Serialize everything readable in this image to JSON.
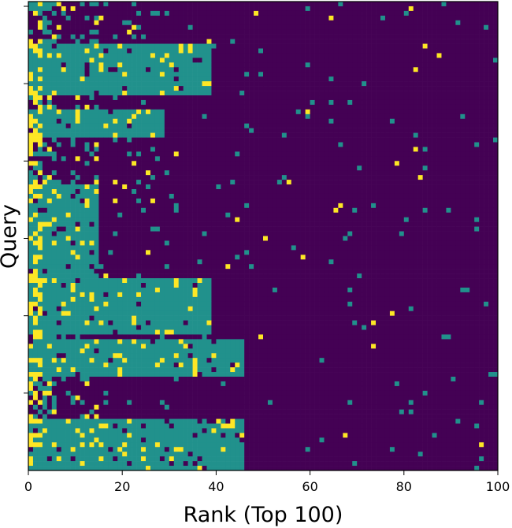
{
  "chart_data": {
    "type": "heatmap",
    "title": "",
    "xlabel": "Rank (Top 100)",
    "ylabel": "Query",
    "x_range": [
      0,
      100
    ],
    "x_ticks": [
      0,
      20,
      40,
      60,
      80,
      100
    ],
    "x_tick_labels": [
      "0",
      "20",
      "40",
      "60",
      "80",
      "100"
    ],
    "y_tick_labels": [
      "",
      "",
      "",
      "",
      "",
      ""
    ],
    "n_rows": 100,
    "n_cols": 100,
    "colorscale": {
      "0": "#440154",
      "1": "#21918c",
      "2": "#fde725"
    },
    "bands": [
      {
        "rows": [
          0,
          1
        ],
        "teal_until": 3
      },
      {
        "rows": [
          9,
          19
        ],
        "teal_until": 38
      },
      {
        "rows": [
          23,
          28
        ],
        "teal_until": 28
      },
      {
        "rows": [
          39,
          58
        ],
        "teal_until": 14
      },
      {
        "rows": [
          59,
          70
        ],
        "teal_until": 38
      },
      {
        "rows": [
          72,
          79
        ],
        "teal_until": 45
      },
      {
        "rows": [
          89,
          99
        ],
        "teal_until": 45
      }
    ],
    "grid": false,
    "legend": "none"
  }
}
